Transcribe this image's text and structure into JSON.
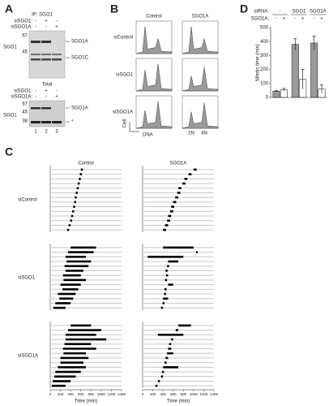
{
  "panel_a": {
    "label": "A",
    "ip_label": "IP: SGO1",
    "rows": [
      {
        "name": "siSGO1:",
        "signs": [
          "-",
          "+",
          "-"
        ]
      },
      {
        "name": "siSGO1A:",
        "signs": [
          "-",
          "-",
          "+"
        ]
      }
    ],
    "markers": [
      "67",
      "45"
    ],
    "protein": "SGO1",
    "band_labels": [
      "SGO1A",
      "SGO1C"
    ],
    "total": {
      "label": "Total",
      "rows": [
        {
          "name": "siSGO1:",
          "signs": [
            "-",
            "+",
            "-"
          ]
        },
        {
          "name": "siSGO1A:",
          "signs": [
            "-",
            "-",
            "+"
          ]
        }
      ],
      "markers": [
        "67",
        "45",
        "38"
      ],
      "protein": "SGO1",
      "band_labels": [
        "SGO1A",
        "*"
      ]
    },
    "lanes": [
      "1",
      "2",
      "3"
    ]
  },
  "panel_b": {
    "label": "B",
    "columns": [
      "Control",
      "SGO1A"
    ],
    "rows": [
      "siControl",
      "siSGO1",
      "siSGO1A"
    ],
    "y_label": "Cell",
    "x_label": "DNA",
    "peaks": [
      "2N",
      "4N"
    ]
  },
  "panel_c": {
    "label": "C",
    "columns": [
      "Control",
      "SGO1A"
    ],
    "rows": [
      "siControl",
      "siSGO1",
      "siSGO1A"
    ],
    "x_label": "Time (min)",
    "xlim": [
      0,
      1400
    ],
    "xticks": [
      0,
      200,
      400,
      600,
      800,
      1000,
      1200,
      1400
    ],
    "cells": [
      [
        [
          [
            600,
            640
          ],
          [
            580,
            620
          ],
          [
            560,
            600
          ],
          [
            540,
            580
          ],
          [
            520,
            560
          ],
          [
            500,
            540
          ],
          [
            480,
            520
          ],
          [
            470,
            510
          ],
          [
            450,
            490
          ],
          [
            430,
            470
          ],
          [
            410,
            450
          ],
          [
            390,
            430
          ],
          [
            360,
            400
          ],
          [
            330,
            370
          ]
        ],
        [
          [
            1000,
            1060
          ],
          [
            900,
            960
          ],
          [
            820,
            880
          ],
          [
            780,
            840
          ],
          [
            700,
            760
          ],
          [
            680,
            740
          ],
          [
            640,
            700
          ],
          [
            600,
            660
          ],
          [
            560,
            620
          ],
          [
            540,
            600
          ],
          [
            500,
            560
          ],
          [
            480,
            540
          ],
          [
            440,
            500
          ],
          [
            400,
            460
          ]
        ]
      ],
      [
        [
          [
            400,
            900
          ],
          [
            350,
            850
          ],
          [
            300,
            700
          ],
          [
            320,
            800
          ],
          [
            280,
            750
          ],
          [
            300,
            650
          ],
          [
            250,
            600
          ],
          [
            260,
            700
          ],
          [
            200,
            600
          ],
          [
            240,
            550
          ],
          [
            150,
            500
          ],
          [
            180,
            450
          ],
          [
            100,
            400
          ],
          [
            60,
            300
          ]
        ],
        [
          [
            400,
            1000
          ],
          [
            1050,
            1080
          ],
          [
            100,
            800
          ],
          [
            500,
            700
          ],
          [
            480,
            520
          ],
          [
            450,
            490
          ],
          [
            460,
            500
          ],
          [
            440,
            480
          ],
          [
            500,
            600
          ],
          [
            430,
            470
          ],
          [
            420,
            460
          ],
          [
            400,
            500
          ],
          [
            390,
            430
          ],
          [
            360,
            400
          ]
        ]
      ],
      [
        [
          [
            400,
            800
          ],
          [
            350,
            1000
          ],
          [
            300,
            900
          ],
          [
            300,
            1100
          ],
          [
            280,
            800
          ],
          [
            250,
            900
          ],
          [
            260,
            700
          ],
          [
            200,
            750
          ],
          [
            200,
            650
          ],
          [
            150,
            700
          ],
          [
            100,
            600
          ],
          [
            80,
            500
          ],
          [
            50,
            400
          ],
          [
            30,
            300
          ]
        ],
        [
          [
            700,
            950
          ],
          [
            650,
            700
          ],
          [
            300,
            800
          ],
          [
            560,
            600
          ],
          [
            520,
            560
          ],
          [
            500,
            560
          ],
          [
            480,
            600
          ],
          [
            450,
            500
          ],
          [
            430,
            470
          ],
          [
            400,
            700
          ],
          [
            380,
            420
          ],
          [
            360,
            400
          ],
          [
            300,
            340
          ],
          [
            250,
            290
          ]
        ]
      ]
    ]
  },
  "chart_data": {
    "type": "bar",
    "label": "D",
    "group_label": "siRNA:",
    "series_label": "SGO1A:",
    "y_label": "Mitotic time (min)",
    "categories": [
      "-",
      "SGO1",
      "SGO1A"
    ],
    "series": [
      {
        "name": "-",
        "color": "#9a9a9a",
        "values": [
          45,
          380,
          390
        ],
        "errors": [
          5,
          40,
          50
        ]
      },
      {
        "name": "+",
        "color": "#ffffff",
        "values": [
          55,
          130,
          60
        ],
        "errors": [
          10,
          70,
          30
        ]
      }
    ],
    "ylim": [
      0,
      500
    ],
    "yticks": [
      0,
      100,
      200,
      300,
      400,
      500
    ]
  }
}
